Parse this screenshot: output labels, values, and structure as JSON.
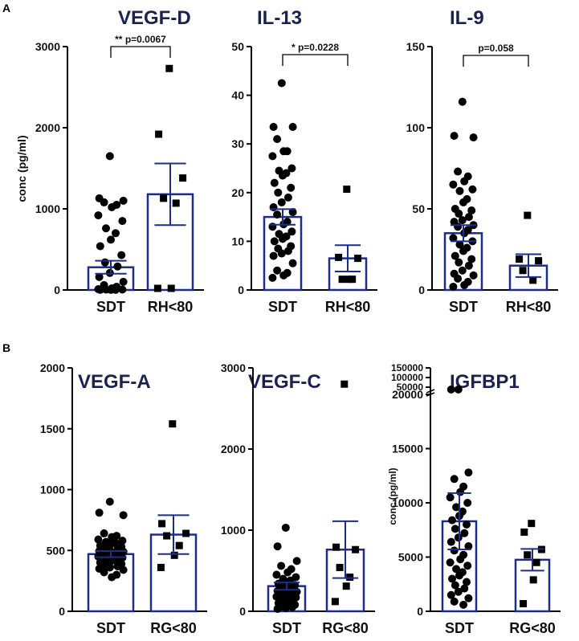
{
  "figure": {
    "panel_a_label": "A",
    "panel_b_label": "B"
  },
  "colors": {
    "bar": "#1c2d8c",
    "axis": "#000000",
    "point": "#000000",
    "background": "#ffffff"
  },
  "chart_data": [
    {
      "id": "vegf-d",
      "type": "bar",
      "panel": "A",
      "title": "VEGF-D",
      "ylabel": "conc (pg/ml)",
      "ylim": [
        0,
        3000
      ],
      "yticks": [
        0,
        1000,
        2000,
        3000
      ],
      "categories": [
        "SDT",
        "RH<80"
      ],
      "means": [
        280,
        1180
      ],
      "sem": [
        80,
        380
      ],
      "points": [
        [
          1650,
          1130,
          1100,
          1080,
          1050,
          1020,
          920,
          850,
          760,
          700,
          620,
          540,
          430,
          340,
          290,
          210,
          160,
          100,
          60,
          40,
          20,
          10,
          5,
          5,
          2,
          2,
          2
        ],
        [
          2730,
          1920,
          1380,
          1130,
          1070,
          20,
          20
        ]
      ],
      "annotation": {
        "text": "** p=0.0067",
        "between": [
          "SDT",
          "RH<80"
        ]
      }
    },
    {
      "id": "il-13",
      "type": "bar",
      "panel": "A",
      "title": "IL-13",
      "ylabel": "",
      "ylim": [
        0,
        50
      ],
      "yticks": [
        0,
        10,
        20,
        30,
        40,
        50
      ],
      "categories": [
        "SDT",
        "RH<80"
      ],
      "means": [
        15,
        6.5
      ],
      "sem": [
        1.6,
        2.7
      ],
      "points": [
        [
          42.5,
          33.5,
          33.5,
          31,
          28.5,
          28.5,
          27.5,
          25,
          24.5,
          24,
          23.5,
          22,
          21,
          20,
          19,
          18,
          17,
          16,
          15.5,
          14,
          13.5,
          13,
          12,
          11.5,
          11,
          10.5,
          10,
          9,
          8.5,
          8,
          7.5,
          7,
          5.5,
          4,
          3.5,
          3,
          2.5
        ],
        [
          20.7,
          6.7,
          6.5,
          2.2,
          2.2,
          2.2
        ]
      ],
      "annotation": {
        "text": "* p=0.0228",
        "between": [
          "SDT",
          "RH<80"
        ]
      }
    },
    {
      "id": "il-9",
      "type": "bar",
      "panel": "A",
      "title": "IL-9",
      "ylabel": "",
      "ylim": [
        0,
        150
      ],
      "yticks": [
        0,
        50,
        100,
        150
      ],
      "categories": [
        "SDT",
        "RH<80"
      ],
      "means": [
        35,
        15
      ],
      "sem": [
        5,
        7
      ],
      "points": [
        [
          116,
          95,
          94,
          73,
          70,
          67,
          65,
          62,
          61,
          56,
          54,
          50,
          49,
          47,
          45,
          43,
          42,
          40,
          39,
          37,
          35,
          32,
          30,
          28,
          26,
          24,
          21,
          19,
          17,
          15,
          12,
          10,
          9,
          7,
          5,
          3,
          2
        ],
        [
          46,
          19,
          18,
          12,
          6
        ]
      ],
      "annotation": {
        "text": "p=0.058",
        "between": [
          "SDT",
          "RH<80"
        ]
      }
    },
    {
      "id": "vegf-a",
      "type": "bar",
      "panel": "B",
      "title": "VEGF-A",
      "ylabel": "",
      "ylim": [
        0,
        2000
      ],
      "yticks": [
        0,
        500,
        1000,
        1500,
        2000
      ],
      "categories": [
        "SDT",
        "RG<80"
      ],
      "means": [
        470,
        630
      ],
      "sem": [
        25,
        160
      ],
      "points": [
        [
          900,
          810,
          790,
          640,
          620,
          610,
          590,
          580,
          570,
          560,
          550,
          540,
          530,
          520,
          510,
          500,
          495,
          490,
          480,
          470,
          460,
          450,
          440,
          430,
          420,
          410,
          400,
          390,
          380,
          370,
          360,
          350,
          340,
          320,
          300,
          280
        ],
        [
          1540,
          720,
          640,
          620,
          540,
          460,
          360
        ]
      ],
      "annotation": null
    },
    {
      "id": "vegf-c",
      "type": "bar",
      "panel": "B",
      "title": "VEGF-C",
      "ylabel": "",
      "ylim": [
        0,
        3000
      ],
      "yticks": [
        0,
        1000,
        2000,
        3000
      ],
      "categories": [
        "SDT",
        "RG<80"
      ],
      "means": [
        310,
        760
      ],
      "sem": [
        45,
        350
      ],
      "points": [
        [
          1030,
          800,
          620,
          560,
          520,
          480,
          450,
          420,
          400,
          380,
          360,
          340,
          320,
          300,
          290,
          270,
          250,
          240,
          220,
          210,
          200,
          180,
          170,
          150,
          130,
          110,
          100,
          80,
          60,
          50,
          40,
          30
        ],
        [
          2800,
          790,
          760,
          540,
          420,
          310,
          120
        ]
      ],
      "annotation": null
    },
    {
      "id": "igfbp1",
      "type": "bar",
      "panel": "B",
      "title": "IGFBP1",
      "ylabel": "conc (pg/ml)",
      "ylim": [
        0,
        20000
      ],
      "yticks": [
        0,
        5000,
        10000,
        15000,
        20000
      ],
      "break_ticks": [
        50000,
        100000,
        150000
      ],
      "categories": [
        "SDT",
        "RG<80"
      ],
      "means": [
        8300,
        4750
      ],
      "sem": [
        2600,
        1000
      ],
      "points": [
        [
          21200,
          21000,
          12800,
          12200,
          11500,
          11000,
          10500,
          10000,
          9600,
          9200,
          8800,
          8400,
          8000,
          7600,
          7200,
          6800,
          6400,
          6000,
          5600,
          5200,
          4800,
          4500,
          4200,
          3900,
          3600,
          3300,
          3000,
          2700,
          2400,
          2100,
          1800,
          1500,
          1200,
          900,
          600
        ],
        [
          8100,
          7300,
          5700,
          5200,
          4500,
          2900,
          700
        ]
      ],
      "annotation": null
    }
  ]
}
